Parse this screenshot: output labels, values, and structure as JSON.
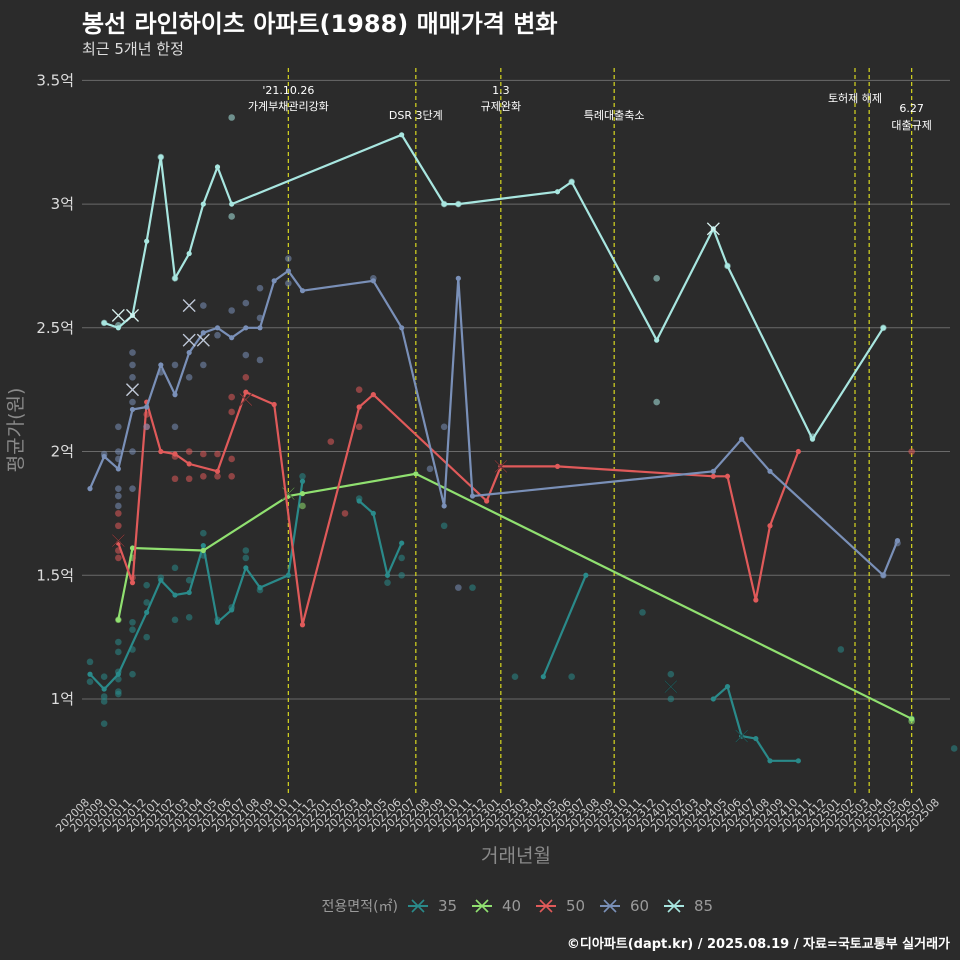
{
  "title": "봉선 라인하이츠 아파트(1988) 매매가격 변화",
  "subtitle": "최근 5개년 한정",
  "caption": "©디아파트(dapt.kr) / 2025.08.19 / 자료=국토교통부 실거래가",
  "chart_data": {
    "type": "line",
    "xlabel": "거래년월",
    "ylabel": "평균가(원)",
    "ylim": [
      0.62,
      3.55
    ],
    "y_ticks": [
      {
        "value": 1.0,
        "label": "1억"
      },
      {
        "value": 1.5,
        "label": "1.5억"
      },
      {
        "value": 2.0,
        "label": "2억"
      },
      {
        "value": 2.5,
        "label": "2.5억"
      },
      {
        "value": 3.0,
        "label": "3억"
      },
      {
        "value": 3.5,
        "label": "3.5억"
      }
    ],
    "x_labels": [
      "202008",
      "202009",
      "202010",
      "202011",
      "202012",
      "202101",
      "202102",
      "202103",
      "202104",
      "202105",
      "202106",
      "202107",
      "202108",
      "202109",
      "202110",
      "202111",
      "202112",
      "202201",
      "202202",
      "202203",
      "202204",
      "202205",
      "202206",
      "202207",
      "202208",
      "202209",
      "202210",
      "202211",
      "202212",
      "202301",
      "202302",
      "202303",
      "202304",
      "202305",
      "202306",
      "202307",
      "202308",
      "202309",
      "202310",
      "202311",
      "202312",
      "202401",
      "202402",
      "202403",
      "202404",
      "202405",
      "202406",
      "202407",
      "202408",
      "202409",
      "202410",
      "202411",
      "202412",
      "202501",
      "202502",
      "202503",
      "202504",
      "202505",
      "202506",
      "202507",
      "202508"
    ],
    "legend_title": "전용면적(㎡)",
    "annotations": [
      {
        "x": 14,
        "lines": [
          "'21.10.26",
          "가계부채관리강화"
        ]
      },
      {
        "x": 23,
        "lines": [
          "DSR 3단계"
        ]
      },
      {
        "x": 29,
        "lines": [
          "1.3",
          "규제완화"
        ]
      },
      {
        "x": 37,
        "lines": [
          "특례대출축소"
        ]
      },
      {
        "x": 54,
        "lines": [
          "토허제 해제"
        ]
      },
      {
        "x": 55,
        "lines": []
      },
      {
        "x": 58,
        "lines": [
          "6.27",
          "대출규제"
        ]
      }
    ],
    "series": [
      {
        "name": "35",
        "color": "#2a8a8a",
        "line": [
          [
            0,
            1.1
          ],
          [
            1,
            1.04
          ],
          [
            2,
            1.1
          ],
          [
            4,
            1.35
          ],
          [
            5,
            1.48
          ],
          [
            6,
            1.42
          ],
          [
            7,
            1.43
          ],
          [
            8,
            1.62
          ],
          [
            9,
            1.31
          ],
          [
            10,
            1.36
          ],
          [
            11,
            1.53
          ],
          [
            12,
            1.45
          ],
          [
            14,
            1.5
          ],
          [
            15,
            1.88
          ],
          [
            null,
            null
          ],
          [
            19,
            1.8
          ],
          [
            20,
            1.75
          ],
          [
            21,
            1.5
          ],
          [
            22,
            1.63
          ],
          [
            null,
            null
          ],
          [
            32,
            1.09
          ],
          [
            35,
            1.5
          ],
          [
            null,
            null
          ],
          [
            44,
            1.0
          ],
          [
            45,
            1.05
          ],
          [
            46,
            0.85
          ],
          [
            47,
            0.84
          ],
          [
            48,
            0.75
          ],
          [
            50,
            0.75
          ]
        ],
        "points": [
          [
            0,
            1.15
          ],
          [
            0,
            1.07
          ],
          [
            1,
            1.09
          ],
          [
            1,
            1.01
          ],
          [
            1,
            0.99
          ],
          [
            1,
            0.9
          ],
          [
            2,
            1.23
          ],
          [
            2,
            1.19
          ],
          [
            2,
            1.11
          ],
          [
            2,
            1.08
          ],
          [
            2,
            1.03
          ],
          [
            2,
            1.02
          ],
          [
            3,
            1.31
          ],
          [
            3,
            1.28
          ],
          [
            3,
            1.2
          ],
          [
            3,
            1.1
          ],
          [
            4,
            1.46
          ],
          [
            4,
            1.39
          ],
          [
            4,
            1.25
          ],
          [
            5,
            1.49
          ],
          [
            6,
            1.53
          ],
          [
            6,
            1.32
          ],
          [
            7,
            1.48
          ],
          [
            7,
            1.33
          ],
          [
            8,
            1.67
          ],
          [
            8,
            1.58
          ],
          [
            9,
            1.32
          ],
          [
            10,
            1.37
          ],
          [
            11,
            1.6
          ],
          [
            11,
            1.57
          ],
          [
            12,
            1.44
          ],
          [
            15,
            1.9
          ],
          [
            19,
            1.81
          ],
          [
            21,
            1.47
          ],
          [
            22,
            1.57
          ],
          [
            22,
            1.5
          ],
          [
            25,
            1.7
          ],
          [
            27,
            1.45
          ],
          [
            30,
            1.09
          ],
          [
            34,
            1.09
          ],
          [
            39,
            1.35
          ],
          [
            41,
            1.1
          ],
          [
            41,
            1.0
          ],
          [
            58,
            0.92
          ],
          [
            53,
            1.2
          ],
          [
            61,
            0.8
          ]
        ],
        "markers": [
          [
            41,
            1.05
          ],
          [
            46,
            0.85
          ]
        ]
      },
      {
        "name": "40",
        "color": "#90e070",
        "line": [
          [
            2,
            1.32
          ],
          [
            3,
            1.61
          ],
          [
            8,
            1.6
          ],
          [
            14,
            1.82
          ],
          [
            15,
            1.83
          ],
          [
            23,
            1.91
          ],
          [
            58,
            0.92
          ]
        ],
        "points": [
          [
            2,
            1.32
          ],
          [
            3,
            1.57
          ],
          [
            15,
            1.78
          ],
          [
            58,
            0.91
          ]
        ],
        "markers": [
          [
            14,
            1.83
          ]
        ]
      },
      {
        "name": "50",
        "color": "#e05a5a",
        "line": [
          [
            2,
            1.63
          ],
          [
            3,
            1.47
          ],
          [
            4,
            2.2
          ],
          [
            5,
            2.0
          ],
          [
            6,
            1.99
          ],
          [
            7,
            1.95
          ],
          [
            9,
            1.92
          ],
          [
            11,
            2.24
          ],
          [
            13,
            2.19
          ],
          [
            15,
            1.3
          ],
          [
            19,
            2.18
          ],
          [
            20,
            2.23
          ],
          [
            28,
            1.8
          ],
          [
            29,
            1.94
          ],
          [
            33,
            1.94
          ],
          [
            44,
            1.9
          ],
          [
            45,
            1.9
          ],
          [
            47,
            1.4
          ],
          [
            48,
            1.7
          ],
          [
            50,
            2.0
          ]
        ],
        "points": [
          [
            2,
            1.75
          ],
          [
            2,
            1.7
          ],
          [
            2,
            1.6
          ],
          [
            2,
            1.57
          ],
          [
            3,
            1.49
          ],
          [
            4,
            2.15
          ],
          [
            4,
            2.1
          ],
          [
            6,
            1.98
          ],
          [
            6,
            1.89
          ],
          [
            7,
            2.0
          ],
          [
            7,
            1.89
          ],
          [
            8,
            1.99
          ],
          [
            8,
            1.9
          ],
          [
            9,
            1.99
          ],
          [
            9,
            1.9
          ],
          [
            10,
            2.22
          ],
          [
            10,
            2.16
          ],
          [
            10,
            1.97
          ],
          [
            10,
            1.9
          ],
          [
            11,
            2.3
          ],
          [
            17,
            2.04
          ],
          [
            18,
            1.75
          ],
          [
            19,
            2.25
          ],
          [
            19,
            2.1
          ],
          [
            58,
            2.0
          ]
        ],
        "markers": [
          [
            2,
            1.64
          ],
          [
            11,
            2.21
          ],
          [
            29,
            1.94
          ]
        ]
      },
      {
        "name": "60",
        "color": "#7a90b8",
        "line": [
          [
            0,
            1.85
          ],
          [
            1,
            1.98
          ],
          [
            2,
            1.93
          ],
          [
            3,
            2.17
          ],
          [
            4,
            2.18
          ],
          [
            5,
            2.35
          ],
          [
            6,
            2.23
          ],
          [
            7,
            2.4
          ],
          [
            8,
            2.48
          ],
          [
            9,
            2.5
          ],
          [
            10,
            2.46
          ],
          [
            11,
            2.5
          ],
          [
            12,
            2.5
          ],
          [
            13,
            2.69
          ],
          [
            14,
            2.73
          ],
          [
            15,
            2.65
          ],
          [
            20,
            2.69
          ],
          [
            22,
            2.5
          ],
          [
            25,
            1.78
          ],
          [
            26,
            2.7
          ],
          [
            27,
            1.82
          ],
          [
            44,
            1.92
          ],
          [
            46,
            2.05
          ],
          [
            48,
            1.92
          ],
          [
            56,
            1.5
          ],
          [
            57,
            1.64
          ]
        ],
        "points": [
          [
            1,
            1.99
          ],
          [
            2,
            2.1
          ],
          [
            2,
            2.0
          ],
          [
            2,
            1.97
          ],
          [
            2,
            1.85
          ],
          [
            2,
            1.82
          ],
          [
            2,
            1.78
          ],
          [
            3,
            2.4
          ],
          [
            3,
            2.35
          ],
          [
            3,
            2.3
          ],
          [
            3,
            2.2
          ],
          [
            3,
            2.0
          ],
          [
            3,
            1.85
          ],
          [
            4,
            2.1
          ],
          [
            5,
            2.32
          ],
          [
            6,
            2.1
          ],
          [
            6,
            2.35
          ],
          [
            7,
            2.3
          ],
          [
            8,
            2.59
          ],
          [
            8,
            2.35
          ],
          [
            9,
            2.47
          ],
          [
            10,
            2.57
          ],
          [
            11,
            2.6
          ],
          [
            11,
            2.39
          ],
          [
            12,
            2.37
          ],
          [
            12,
            2.54
          ],
          [
            12,
            2.66
          ],
          [
            14,
            2.78
          ],
          [
            14,
            2.68
          ],
          [
            20,
            2.7
          ],
          [
            24,
            1.93
          ],
          [
            25,
            2.1
          ],
          [
            26,
            1.45
          ],
          [
            56,
            1.5
          ],
          [
            57,
            1.63
          ]
        ],
        "markers": [
          [
            3,
            2.25
          ],
          [
            7,
            2.59
          ],
          [
            7,
            2.45
          ],
          [
            8,
            2.45
          ]
        ]
      },
      {
        "name": "85",
        "color": "#a8e6e0",
        "line": [
          [
            1,
            2.52
          ],
          [
            2,
            2.5
          ],
          [
            3,
            2.55
          ],
          [
            4,
            2.85
          ],
          [
            5,
            3.19
          ],
          [
            6,
            2.7
          ],
          [
            7,
            2.8
          ],
          [
            8,
            3.0
          ],
          [
            9,
            3.15
          ],
          [
            10,
            3.0
          ],
          [
            22,
            3.28
          ],
          [
            25,
            3.0
          ],
          [
            26,
            3.0
          ],
          [
            33,
            3.05
          ],
          [
            34,
            3.09
          ],
          [
            40,
            2.45
          ],
          [
            44,
            2.9
          ],
          [
            45,
            2.75
          ],
          [
            51,
            2.05
          ],
          [
            56,
            2.5
          ]
        ],
        "points": [
          [
            1,
            2.52
          ],
          [
            2,
            2.51
          ],
          [
            5,
            3.19
          ],
          [
            6,
            2.7
          ],
          [
            10,
            3.35
          ],
          [
            10,
            2.95
          ],
          [
            25,
            3.0
          ],
          [
            26,
            3.0
          ],
          [
            34,
            3.09
          ],
          [
            40,
            2.7
          ],
          [
            40,
            2.2
          ],
          [
            45,
            2.75
          ],
          [
            51,
            2.06
          ],
          [
            56,
            2.5
          ]
        ],
        "markers": [
          [
            2,
            2.55
          ],
          [
            3,
            2.55
          ],
          [
            44,
            2.9
          ]
        ]
      }
    ]
  }
}
